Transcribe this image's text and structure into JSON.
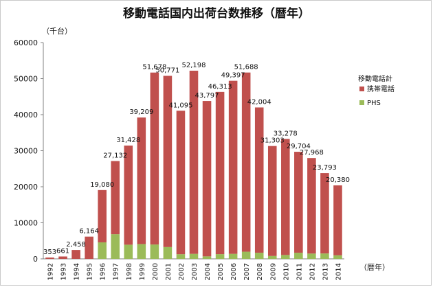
{
  "chart_data": {
    "type": "bar",
    "stacked": true,
    "title": "移動電話国内出荷台数推移（暦年）",
    "y_unit_label": "（千台）",
    "x_unit_label": "（暦年）",
    "ylim": [
      0,
      60000
    ],
    "yticks": [
      0,
      10000,
      20000,
      30000,
      40000,
      50000,
      60000
    ],
    "grid": false,
    "legend_title": "移動電話計",
    "legend_position": "right",
    "categories": [
      "1992",
      "1993",
      "1994",
      "1995",
      "1996",
      "1997",
      "1998",
      "1999",
      "2000",
      "2001",
      "2002",
      "2003",
      "2004",
      "2005",
      "2006",
      "2007",
      "2008",
      "2009",
      "2010",
      "2011",
      "2012",
      "2013",
      "2014"
    ],
    "totals": [
      353,
      661,
      2458,
      6164,
      19080,
      27132,
      31428,
      39209,
      51678,
      50771,
      41095,
      52198,
      43797,
      46313,
      49397,
      51688,
      42004,
      31303,
      33278,
      29704,
      27968,
      23793,
      20380
    ],
    "total_labels": [
      "353",
      "661",
      "2,458",
      "6,164",
      "19,080",
      "27,132",
      "31,428",
      "39,209",
      "51,678",
      "50,771",
      "41,095",
      "52,198",
      "43,797",
      "46,313",
      "49,397",
      "51,688",
      "42,004",
      "31,303",
      "33,278",
      "29,704",
      "27,968",
      "23,793",
      "20,380"
    ],
    "series": [
      {
        "name": "携帯電話",
        "color": "#c0504d",
        "values": [
          353,
          661,
          2458,
          6164,
          14500,
          20300,
          27500,
          35100,
          47700,
          47500,
          39800,
          50800,
          43100,
          45000,
          48000,
          49700,
          40300,
          30500,
          32200,
          28000,
          26500,
          22300,
          19400
        ]
      },
      {
        "name": "PHS",
        "color": "#9bbb59",
        "values": [
          0,
          0,
          0,
          0,
          4580,
          6832,
          3928,
          4109,
          3978,
          3271,
          1295,
          1398,
          697,
          1313,
          1397,
          1988,
          1704,
          803,
          1078,
          1704,
          1468,
          1493,
          980
        ]
      }
    ]
  }
}
